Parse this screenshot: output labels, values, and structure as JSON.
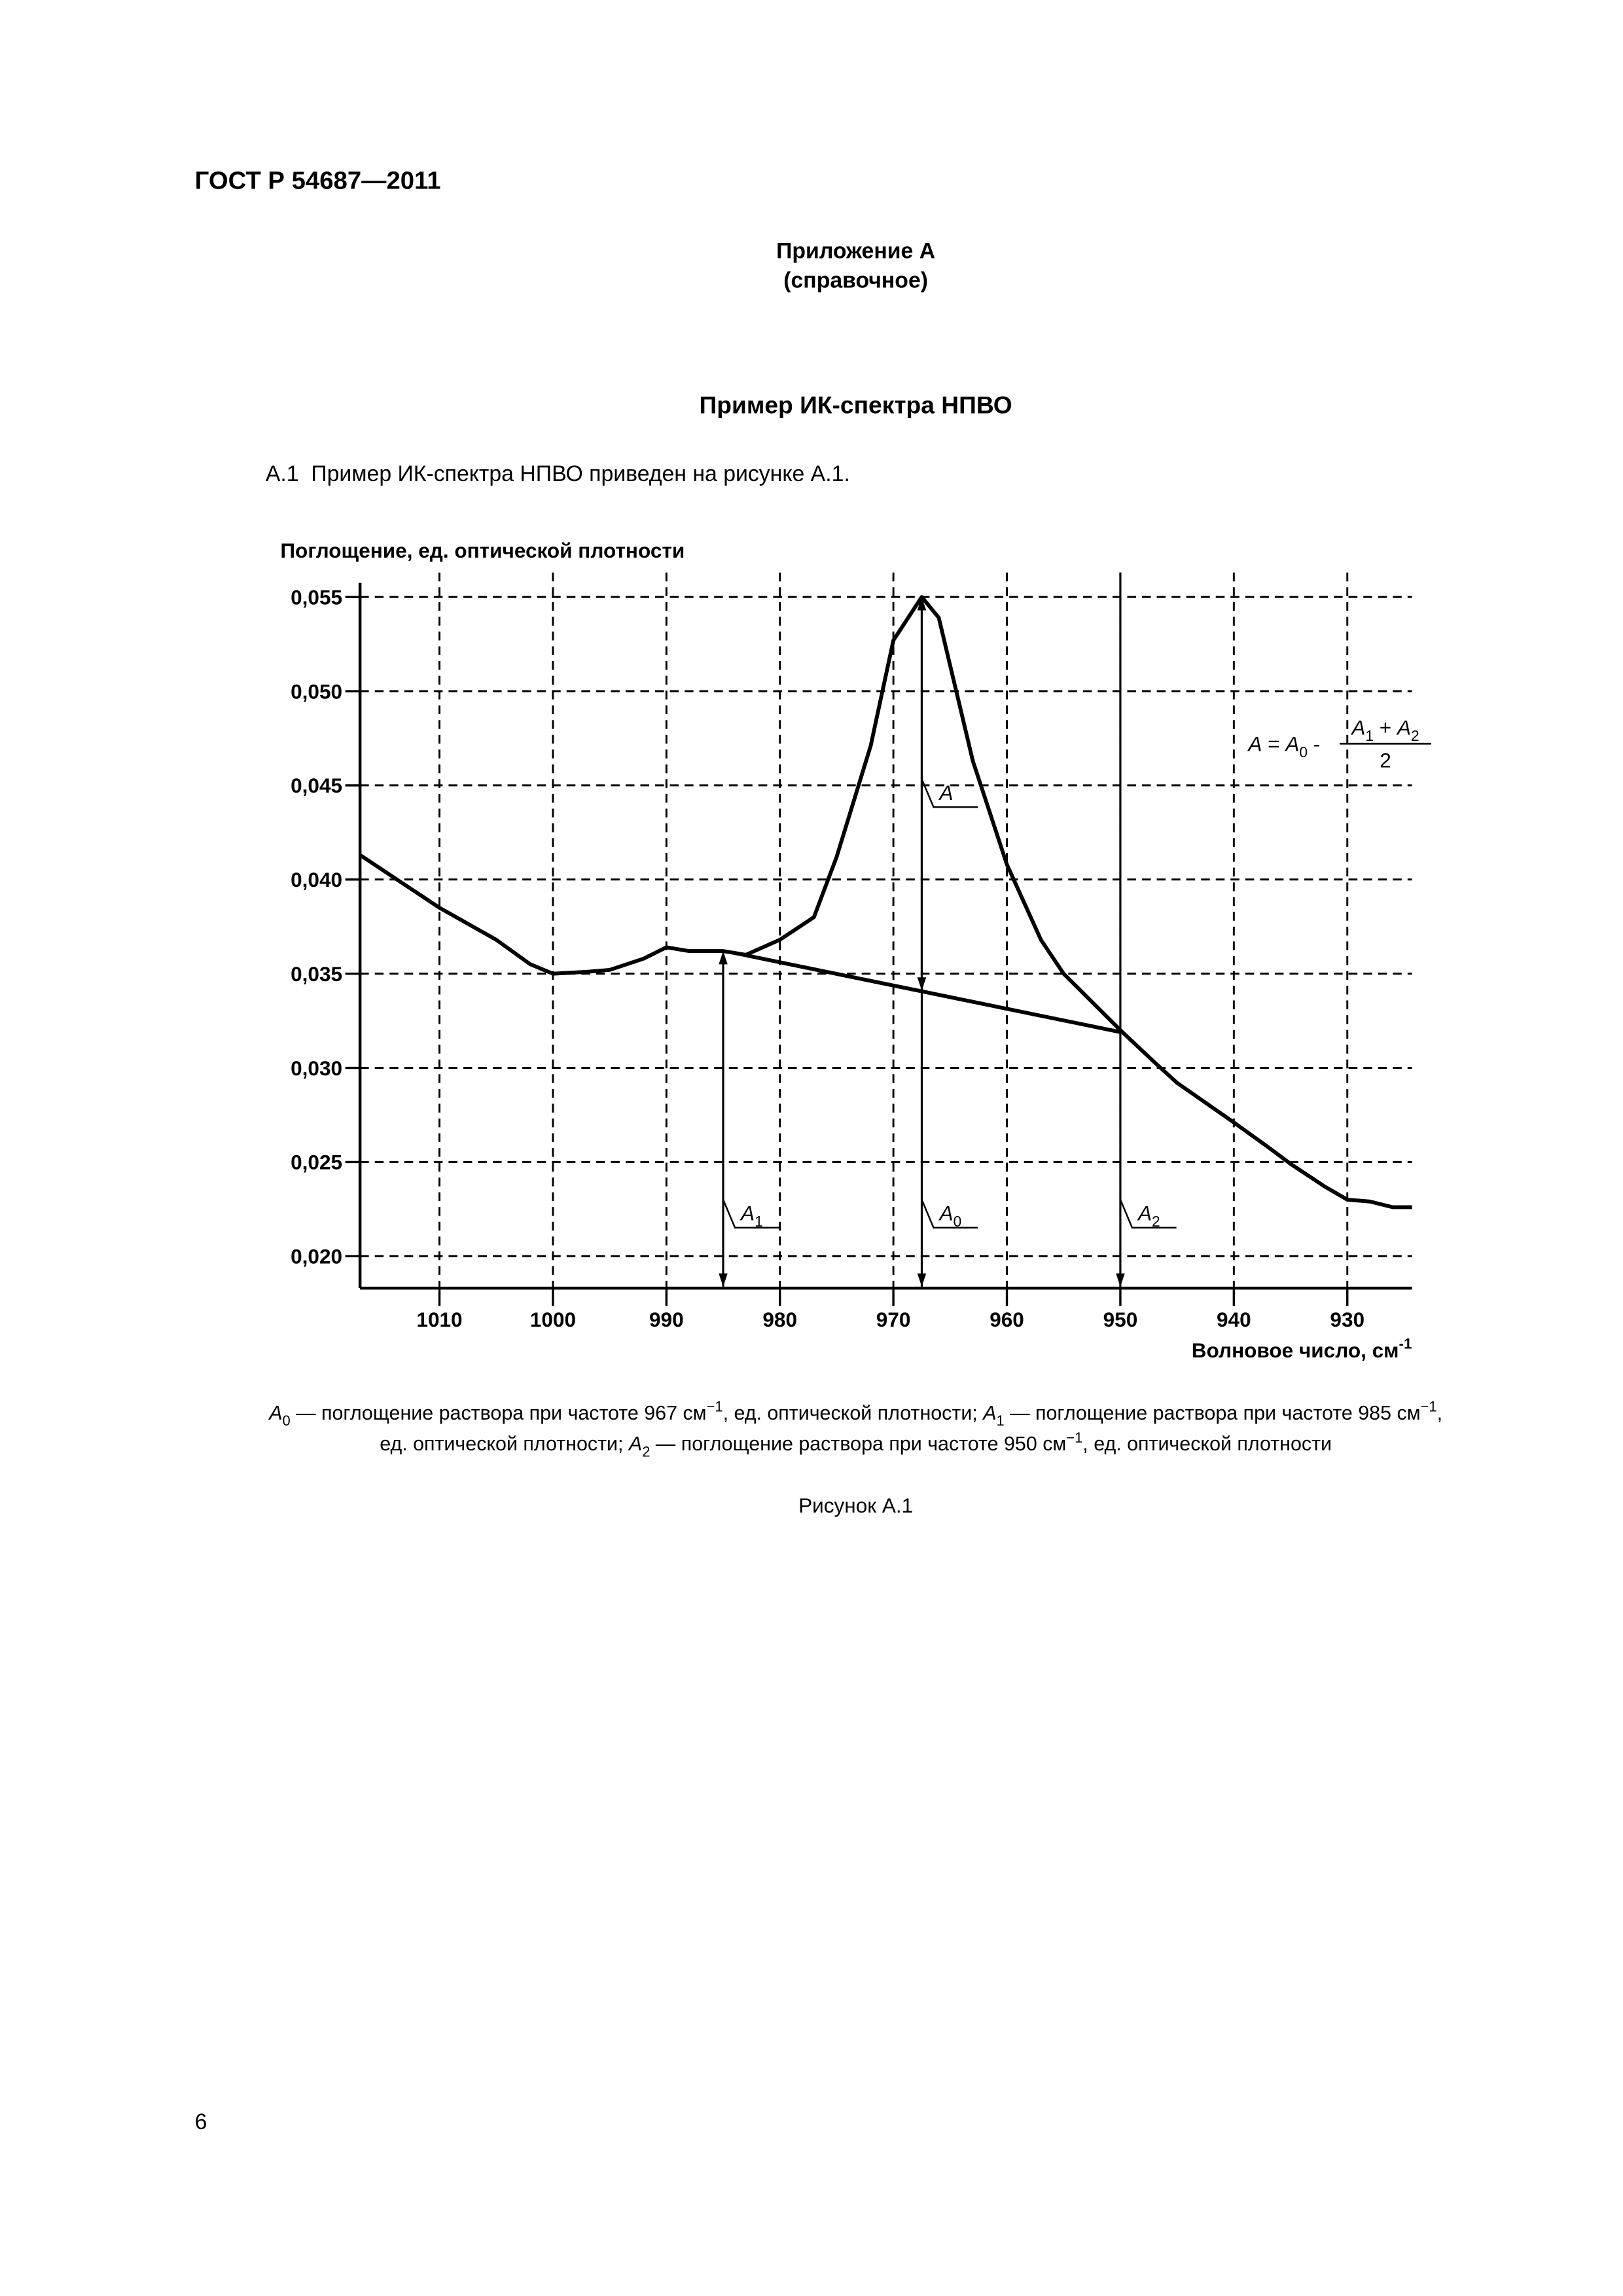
{
  "header": {
    "code": "ГОСТ Р 54687—2011"
  },
  "appendix": {
    "title": "Приложение А",
    "subtitle": "(справочное)"
  },
  "section_title": "Пример ИК-спектра НПВО",
  "paragraph": "А.1  Пример ИК-спектра НПВО приведен на рисунке А.1.",
  "chart_data": {
    "type": "line",
    "y_label": "Поглощение, ед. оптической плотности",
    "x_label": {
      "text": "Волновое число, см",
      "power": "-1"
    },
    "xlim": [
      1017,
      924.3
    ],
    "ylim": [
      0.0183,
      0.0563
    ],
    "xticks": [
      1010,
      1000,
      990,
      980,
      970,
      960,
      950,
      940,
      930
    ],
    "yticks": [
      {
        "value": 0.02,
        "label": "0,020"
      },
      {
        "value": 0.025,
        "label": "0,025"
      },
      {
        "value": 0.03,
        "label": "0,030"
      },
      {
        "value": 0.035,
        "label": "0,035"
      },
      {
        "value": 0.04,
        "label": "0,040"
      },
      {
        "value": 0.045,
        "label": "0,045"
      },
      {
        "value": 0.05,
        "label": "0,050"
      },
      {
        "value": 0.055,
        "label": "0,055"
      }
    ],
    "grid": true,
    "grid_style": "dashed",
    "series": [
      {
        "color": "#000000",
        "x": [
          1017,
          1010,
          1005,
          1002,
          1000,
          997,
          995,
          992,
          990,
          988,
          985,
          983,
          980,
          977,
          975,
          972,
          970,
          967.5,
          966,
          963,
          960,
          957,
          955,
          952,
          950,
          947,
          945,
          940,
          937,
          935,
          932,
          930,
          928,
          926,
          924.3
        ],
        "values": [
          0.0413,
          0.0385,
          0.0368,
          0.0355,
          0.035,
          0.0351,
          0.0352,
          0.0358,
          0.0364,
          0.0362,
          0.0362,
          0.036,
          0.0368,
          0.038,
          0.0412,
          0.0471,
          0.0527,
          0.055,
          0.0539,
          0.0463,
          0.0408,
          0.0368,
          0.035,
          0.0332,
          0.032,
          0.0303,
          0.0292,
          0.0271,
          0.0258,
          0.0249,
          0.0237,
          0.023,
          0.0229,
          0.0226,
          0.0226
        ]
      },
      {
        "color": "#000000",
        "x": [
          984,
          950
        ],
        "values": [
          0.0361,
          0.0319
        ]
      }
    ],
    "markers": [
      {
        "x": 985,
        "y": [
          0.0362
        ],
        "heads": "both",
        "extend": false,
        "label": [
          {
            "text": "A",
            "style": "italic"
          },
          {
            "text": "1",
            "style": "sub"
          }
        ]
      },
      {
        "x": 967.5,
        "y": [
          0.055
        ],
        "heads": "both",
        "extend": false,
        "label": [
          {
            "text": "A",
            "style": "italic"
          },
          {
            "text": "0",
            "style": "sub"
          }
        ]
      },
      {
        "x": 950,
        "y": [
          0.0319
        ],
        "heads": "bottom",
        "extend": true,
        "label": [
          {
            "text": "A",
            "style": "italic"
          },
          {
            "text": "2",
            "style": "sub"
          }
        ]
      },
      {
        "x": 967.5,
        "y": [
          0.055,
          0.0341
        ],
        "heads": "end",
        "extend": false,
        "label": [
          {
            "text": "A",
            "style": "italic"
          }
        ]
      }
    ],
    "formula": {
      "left": [
        {
          "text": "A",
          "style": "italic"
        },
        " = ",
        {
          "text": "A",
          "style": "italic"
        },
        {
          "text": "0",
          "style": "sub"
        },
        " - "
      ],
      "numerator": [
        {
          "text": "A",
          "style": "italic"
        },
        {
          "text": "1",
          "style": "sub"
        },
        " + ",
        {
          "text": "A",
          "style": "italic"
        },
        {
          "text": "2",
          "style": "sub"
        }
      ],
      "denominator": "2"
    }
  },
  "note_lines": [
    [
      {
        "text": "A",
        "style": "italic"
      },
      {
        "text": "0",
        "style": "sub"
      },
      " — поглощение раствора при частоте 967 см",
      {
        "text": "−1",
        "style": "sup"
      },
      ", ед. оптической плотности; ",
      {
        "text": "A",
        "style": "italic"
      },
      {
        "text": "1",
        "style": "sub"
      },
      " — поглощение раствора при частоте 985 см",
      {
        "text": "−1",
        "style": "sup"
      },
      ","
    ],
    [
      "ед. оптической плотности; ",
      {
        "text": "A",
        "style": "italic"
      },
      {
        "text": "2",
        "style": "sub"
      },
      " — поглощение раствора при частоте 950 см",
      {
        "text": "−1",
        "style": "sup"
      },
      ", ед. оптической плотности"
    ]
  ],
  "figure_label": "Рисунок А.1",
  "page_number": "6"
}
